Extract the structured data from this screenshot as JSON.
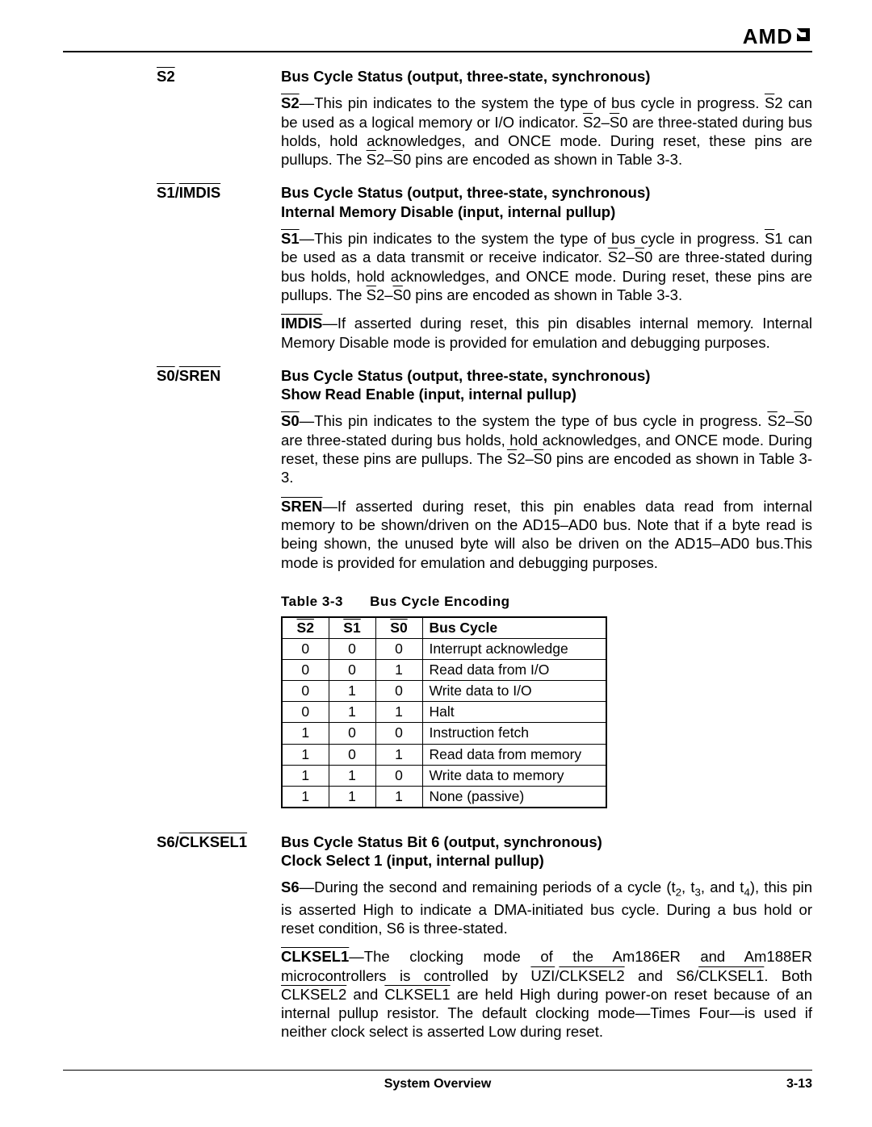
{
  "brand": "AMD",
  "footer": {
    "title": "System Overview",
    "page": "3-13"
  },
  "entries": [
    {
      "label_html": "<span class='ovl'>S2</span>",
      "heading": "Bus Cycle Status (output, three-state, synchronous)",
      "paras": [
        "<b><span class='ovl'>S2</span></b>—This pin indicates to the system the type of bus cycle in progress. <span class='ovl'>S</span>2 can be used as a logical memory or I/O indicator. <span class='ovl'>S</span>2–<span class='ovl'>S</span>0 are three-stated during bus holds, hold acknowledges, and ONCE mode. During reset, these pins are pullups. The <span class='ovl'>S</span>2–<span class='ovl'>S</span>0 pins are encoded as shown in Table 3-3."
      ]
    },
    {
      "label_html": "<span class='ovl'>S1</span>/<span class='ovl'>IMDIS</span>",
      "heading": "Bus Cycle Status (output, three-state, synchronous)<br>Internal Memory Disable (input, internal pullup)",
      "paras": [
        "<b><span class='ovl'>S1</span></b>—This pin indicates to the system the type of bus cycle in progress. <span class='ovl'>S</span>1 can be used as a data transmit or receive indicator. <span class='ovl'>S</span>2–<span class='ovl'>S</span>0 are three-stated during bus holds, hold acknowledges, and ONCE mode. During reset, these pins are pullups. The <span class='ovl'>S</span>2–<span class='ovl'>S</span>0 pins are encoded as shown in Table 3-3.",
        "<b><span class='ovl'>IMDIS</span></b>—If asserted during reset, this pin disables internal memory. Internal Memory Disable mode is provided for emulation and debugging purposes."
      ]
    },
    {
      "label_html": "<span class='ovl'>S0</span>/<span class='ovl'>SREN</span>",
      "heading": "Bus Cycle Status (output, three-state, synchronous)<br>Show Read Enable (input, internal pullup)",
      "paras": [
        "<b><span class='ovl'>S0</span></b>—This pin indicates to the system the type of bus cycle in progress. <span class='ovl'>S</span>2–<span class='ovl'>S</span>0 are three-stated during bus holds, hold acknowledges, and ONCE mode. During reset, these pins are pullups. The <span class='ovl'>S</span>2–<span class='ovl'>S</span>0 pins are encoded as shown in Table 3-3.",
        "<b><span class='ovl'>SREN</span></b>—If asserted during reset, this pin enables data read from internal memory to be shown/driven on the AD15–AD0 bus. Note that if a byte read is being shown, the unused byte will also be driven on the AD15–AD0 bus.This mode is provided for emulation and debugging purposes."
      ]
    }
  ],
  "table": {
    "title_num": "Table 3-3",
    "title_text": "Bus Cycle Encoding",
    "headers": [
      "S2",
      "S1",
      "S0",
      "Bus Cycle"
    ],
    "header_overline": [
      true,
      true,
      true,
      false
    ],
    "col_classes": [
      "num",
      "num",
      "num",
      "desc"
    ],
    "rows": [
      [
        "0",
        "0",
        "0",
        "Interrupt acknowledge"
      ],
      [
        "0",
        "0",
        "1",
        "Read data from I/O"
      ],
      [
        "0",
        "1",
        "0",
        "Write data to I/O"
      ],
      [
        "0",
        "1",
        "1",
        "Halt"
      ],
      [
        "1",
        "0",
        "0",
        "Instruction fetch"
      ],
      [
        "1",
        "0",
        "1",
        "Read data from memory"
      ],
      [
        "1",
        "1",
        "0",
        "Write data to memory"
      ],
      [
        "1",
        "1",
        "1",
        "None (passive)"
      ]
    ]
  },
  "entry_after_table": {
    "label_html": "S6/<span class='ovl'>CLKSEL1</span>",
    "heading": "Bus Cycle Status Bit 6 (output, synchronous)<br>Clock Select 1 (input, internal pullup)",
    "paras": [
      "<b>S6</b>—During the second and remaining periods of a cycle (t<span class='sub'>2</span>, t<span class='sub'>3</span>, and t<span class='sub'>4</span>), this pin is asserted High to indicate a DMA-initiated bus cycle. During a bus hold or reset condition, S6 is three-stated.",
      "<b><span class='ovl'>CLKSEL1</span></b>—The clocking mode of the Am186ER and Am188ER microcontrollers is controlled by <span class='ovl'>UZI</span>/<span class='ovl'>CLKSEL2</span> and S6/<span class='ovl'>CLKSEL1</span>. Both <span class='ovl'>CLKSEL2</span> and <span class='ovl'>CLKSEL1</span> are held High during power-on reset because of an internal pullup resistor. The default clocking mode—Times Four—is used if neither clock select is asserted Low during reset."
    ]
  },
  "colors": {
    "text": "#000000",
    "bg": "#ffffff",
    "rule": "#000000"
  },
  "fonts": {
    "body_pt": 18.5,
    "brand_pt": 26,
    "table_pt": 17.5,
    "family": "Arial"
  }
}
